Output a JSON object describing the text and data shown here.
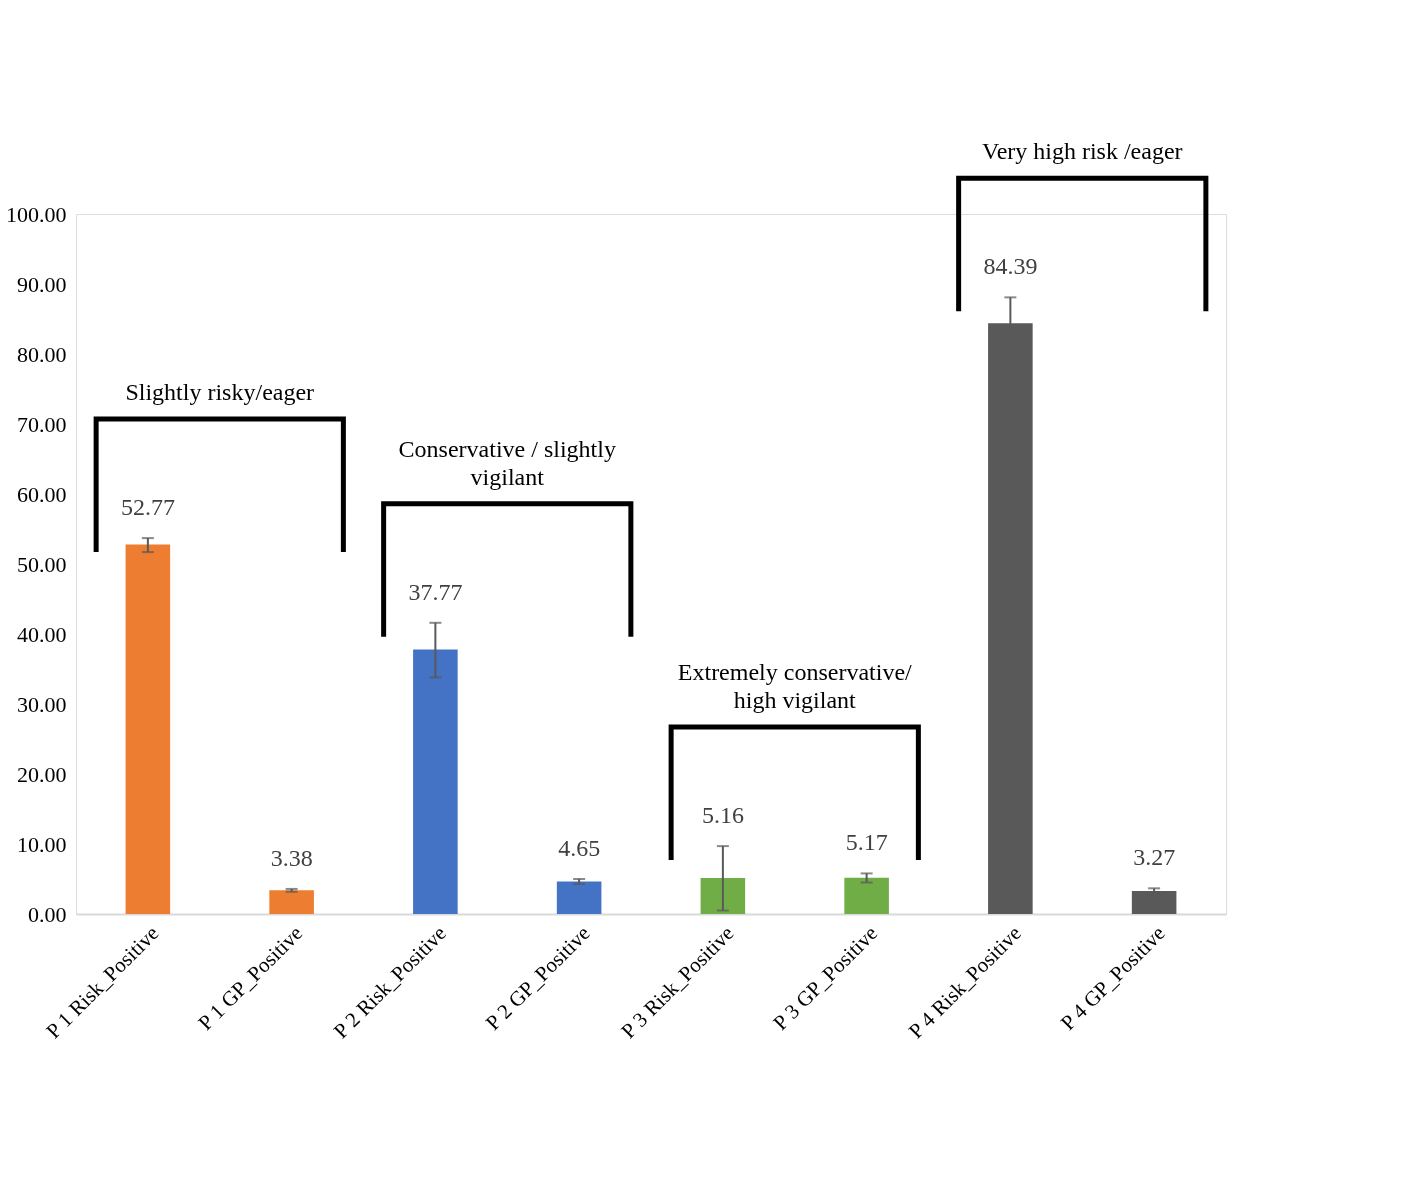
{
  "chart_data": {
    "type": "bar",
    "categories": [
      "P 1 Risk_Positive",
      "P 1 GP_Positive",
      "P 2 Risk_Positive",
      "P 2 GP_Positive",
      "P 3 Risk_Positive",
      "P 3 GP_Positive",
      "P 4 Risk_Positive",
      "P 4 GP_Positive"
    ],
    "values": [
      52.77,
      3.38,
      37.77,
      4.65,
      5.16,
      5.17,
      84.39,
      3.27
    ],
    "colors": [
      "#ed7d31",
      "#ed7d31",
      "#4472c4",
      "#4472c4",
      "#70ad47",
      "#70ad47",
      "#595959",
      "#595959"
    ],
    "errors": [
      [
        51.7,
        53.7
      ],
      0.2,
      [
        33.8,
        41.6
      ],
      [
        4.3,
        5.0
      ],
      [
        0.5,
        9.7
      ],
      [
        4.5,
        5.8
      ],
      3.7,
      0.4
    ],
    "data_labels": true,
    "ylim": [
      0,
      100
    ],
    "yticks": [
      {
        "value": 0,
        "label": "0.00"
      },
      {
        "value": 10,
        "label": "10.00"
      },
      {
        "value": 20,
        "label": "20.00"
      },
      {
        "value": 30,
        "label": "30.00"
      },
      {
        "value": 40,
        "label": "40.00"
      },
      {
        "value": 50,
        "label": "50.00"
      },
      {
        "value": 60,
        "label": "60.00"
      },
      {
        "value": 70,
        "label": "70.00"
      },
      {
        "value": 80,
        "label": "80.00"
      },
      {
        "value": 90,
        "label": "90.00"
      },
      {
        "value": 100,
        "label": "100.00"
      }
    ],
    "annotations": [
      "Slightly risky/eager",
      "Conservative / slightly vigilant",
      "Extremely conservative/ high vigilant",
      "Very high risk /eager"
    ],
    "grid": false
  }
}
